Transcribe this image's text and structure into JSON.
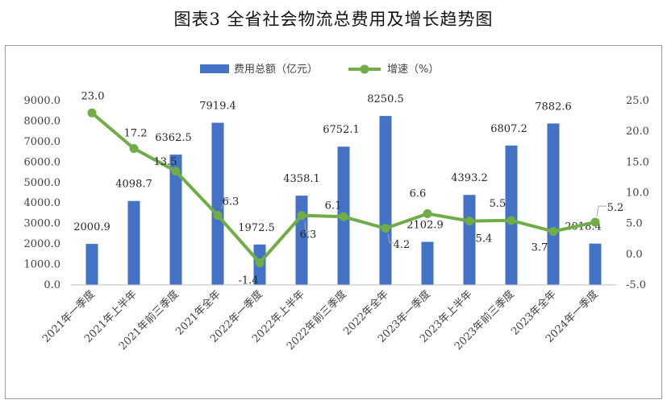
{
  "title": "图表3    全省社会物流总费用及增长趋势图",
  "chart_data": {
    "type": "bar",
    "categories": [
      "2021年一季度",
      "2021年上半年",
      "2021年前三季度",
      "2021年全年",
      "2022年一季度",
      "2022年上半年",
      "2022年前三季度",
      "2022年全年",
      "2023年一季度",
      "2023年上半年",
      "2023年前三季度",
      "2023年全年",
      "2024年一季度"
    ],
    "series": [
      {
        "name": "费用总额（亿元）",
        "type": "bar",
        "axis": "left",
        "color": "#4472C4",
        "values": [
          2000.9,
          4098.7,
          6362.5,
          7919.4,
          1972.5,
          4358.1,
          6752.1,
          8250.5,
          2102.9,
          4393.2,
          6807.2,
          7882.6,
          2018.4
        ],
        "labels": [
          "2000.9",
          "4098.7",
          "6362.5",
          "7919.4",
          "1972.5",
          "4358.1",
          "6752.1",
          "8250.5",
          "2102.9",
          "4393.2",
          "6807.2",
          "7882.6",
          "2018.4"
        ]
      },
      {
        "name": "增速（%）",
        "type": "line",
        "axis": "right",
        "color": "#70AD47",
        "values": [
          23.0,
          17.2,
          13.5,
          6.3,
          -1.4,
          6.3,
          6.1,
          4.2,
          6.6,
          5.4,
          5.5,
          3.7,
          5.2
        ],
        "labels": [
          "23.0",
          "17.2",
          "13.5",
          "6.3",
          "-1.4",
          "6.3",
          "6.1",
          "4.2",
          "6.6",
          "5.4",
          "5.5",
          "3.7",
          "5.2"
        ]
      }
    ],
    "y_left": {
      "min": 0,
      "max": 9000,
      "step": 1000,
      "ticks": [
        "0.0",
        "1000.0",
        "2000.0",
        "3000.0",
        "4000.0",
        "5000.0",
        "6000.0",
        "7000.0",
        "8000.0",
        "9000.0"
      ]
    },
    "y_right": {
      "min": -5,
      "max": 25,
      "step": 5,
      "ticks": [
        "-5.0",
        "0.0",
        "5.0",
        "10.0",
        "15.0",
        "20.0",
        "25.0"
      ]
    },
    "legend_position": "top",
    "grid": false
  }
}
